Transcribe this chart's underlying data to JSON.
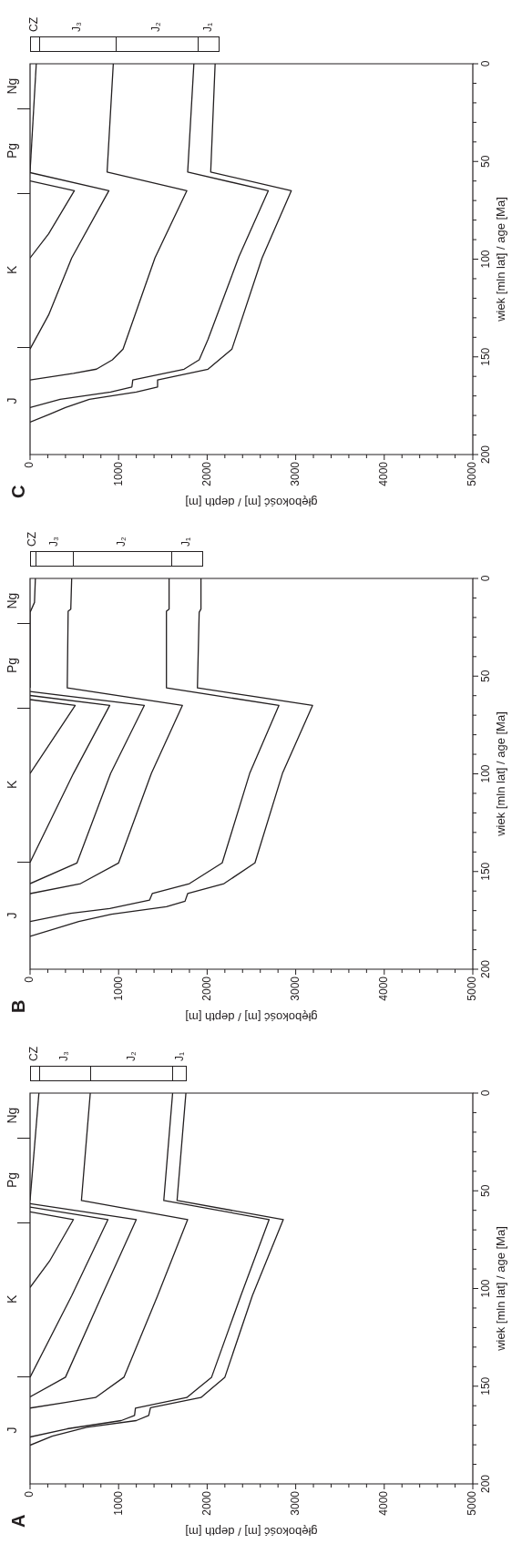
{
  "chart_data": [
    {
      "type": "line",
      "title": "C",
      "xlabel": "głębokość [m] / depth [m]",
      "ylabel": "wiek [mln lat] / age [Ma]",
      "marker": "none",
      "line_style": "solid",
      "legend": false,
      "xlim": [
        0,
        5000
      ],
      "ylim": [
        200,
        0
      ],
      "xticks": [
        0,
        {
          "value": 200,
          "label": null
        },
        {
          "value": 400,
          "label": null
        },
        {
          "value": 600,
          "label": null
        },
        {
          "value": 800,
          "label": null
        },
        1000,
        {
          "value": 1200,
          "label": null
        },
        {
          "value": 1400,
          "label": null
        },
        {
          "value": 1600,
          "label": null
        },
        {
          "value": 1800,
          "label": null
        },
        2000,
        {
          "value": 2200,
          "label": null
        },
        {
          "value": 2400,
          "label": null
        },
        {
          "value": 2600,
          "label": null
        },
        {
          "value": 2800,
          "label": null
        },
        3000,
        {
          "value": 3200,
          "label": null
        },
        {
          "value": 3400,
          "label": null
        },
        {
          "value": 3600,
          "label": null
        },
        {
          "value": 3800,
          "label": null
        },
        4000,
        {
          "value": 4200,
          "label": null
        },
        {
          "value": 4400,
          "label": null
        },
        {
          "value": 4600,
          "label": null
        },
        {
          "value": 4800,
          "label": null
        },
        5000
      ],
      "yticks": [
        0,
        {
          "value": 10,
          "label": null
        },
        {
          "value": 20,
          "label": null
        },
        {
          "value": 30,
          "label": null
        },
        {
          "value": 40,
          "label": null
        },
        50,
        {
          "value": 60,
          "label": null
        },
        {
          "value": 70,
          "label": null
        },
        {
          "value": 80,
          "label": null
        },
        {
          "value": 90,
          "label": null
        },
        100,
        {
          "value": 110,
          "label": null
        },
        {
          "value": 120,
          "label": null
        },
        {
          "value": 130,
          "label": null
        },
        {
          "value": 140,
          "label": null
        },
        150,
        {
          "value": 160,
          "label": null
        },
        {
          "value": 170,
          "label": null
        },
        {
          "value": 180,
          "label": null
        },
        {
          "value": 190,
          "label": null
        },
        200
      ],
      "series": [
        {
          "color": "#231f20",
          "x": [
            0,
            230,
            400,
            670,
            1200,
            1440,
            1440,
            2010,
            2280,
            2620,
            2950,
            2040,
            2090
          ],
          "values": [
            183.4,
            179.2,
            175.9,
            171.7,
            168,
            165.4,
            161.8,
            156.3,
            146,
            99.4,
            65,
            55.4,
            0
          ]
        },
        {
          "color": "#231f20",
          "x": [
            0,
            340,
            910,
            1150,
            1160,
            1740,
            1910,
            2010,
            2360,
            2690,
            1780,
            1850
          ],
          "values": [
            175.9,
            171.7,
            168,
            165.4,
            161.8,
            156.3,
            151.5,
            141,
            98.6,
            65,
            55.4,
            0
          ]
        },
        {
          "color": "#231f20",
          "x": [
            0,
            490,
            750,
            930,
            1050,
            1410,
            1770,
            870,
            940
          ],
          "values": [
            161.8,
            158.4,
            156.3,
            151.5,
            146,
            99.4,
            65,
            55.4,
            0
          ]
        },
        {
          "color": "#231f20",
          "x": [
            0,
            210,
            470,
            890,
            0
          ],
          "values": [
            146,
            128.5,
            99.4,
            65,
            55.7
          ]
        },
        {
          "color": "#231f20",
          "x": [
            0,
            210,
            500,
            0
          ],
          "values": [
            99.4,
            87,
            65,
            60
          ]
        },
        {
          "color": "#231f20",
          "x": [
            0,
            70
          ],
          "values": [
            55.4,
            0
          ]
        }
      ],
      "annotations": [
        "J",
        "K",
        "Pg",
        "Ng",
        "CZ",
        "J₃",
        "J₂",
        "J₁"
      ]
    },
    {
      "type": "line",
      "title": "B",
      "xlabel": "głębokość [m] / depth [m]",
      "ylabel": "wiek [mln lat] / age [Ma]",
      "marker": "none",
      "line_style": "solid",
      "legend": false,
      "xlim": [
        0,
        5000
      ],
      "ylim": [
        200,
        0
      ],
      "xticks": [
        0,
        {
          "value": 200,
          "label": null
        },
        {
          "value": 400,
          "label": null
        },
        {
          "value": 600,
          "label": null
        },
        {
          "value": 800,
          "label": null
        },
        1000,
        {
          "value": 1200,
          "label": null
        },
        {
          "value": 1400,
          "label": null
        },
        {
          "value": 1600,
          "label": null
        },
        {
          "value": 1800,
          "label": null
        },
        2000,
        {
          "value": 2200,
          "label": null
        },
        {
          "value": 2400,
          "label": null
        },
        {
          "value": 2600,
          "label": null
        },
        {
          "value": 2800,
          "label": null
        },
        3000,
        {
          "value": 3200,
          "label": null
        },
        {
          "value": 3400,
          "label": null
        },
        {
          "value": 3600,
          "label": null
        },
        {
          "value": 3800,
          "label": null
        },
        4000,
        {
          "value": 4200,
          "label": null
        },
        {
          "value": 4400,
          "label": null
        },
        {
          "value": 4600,
          "label": null
        },
        {
          "value": 4800,
          "label": null
        },
        5000
      ],
      "yticks": [
        0,
        {
          "value": 10,
          "label": null
        },
        {
          "value": 20,
          "label": null
        },
        {
          "value": 30,
          "label": null
        },
        {
          "value": 40,
          "label": null
        },
        50,
        {
          "value": 60,
          "label": null
        },
        {
          "value": 70,
          "label": null
        },
        {
          "value": 80,
          "label": null
        },
        {
          "value": 90,
          "label": null
        },
        100,
        {
          "value": 110,
          "label": null
        },
        {
          "value": 120,
          "label": null
        },
        {
          "value": 130,
          "label": null
        },
        {
          "value": 140,
          "label": null
        },
        150,
        {
          "value": 160,
          "label": null
        },
        {
          "value": 170,
          "label": null
        },
        {
          "value": 180,
          "label": null
        },
        {
          "value": 190,
          "label": null
        },
        200
      ],
      "series": [
        {
          "color": "#231f20",
          "x": [
            0,
            550,
            920,
            1540,
            1750,
            1780,
            2190,
            2540,
            2850,
            3190,
            1890,
            1910,
            1930,
            1930
          ],
          "values": [
            183.2,
            175.6,
            171.9,
            168,
            165.2,
            161.3,
            156.2,
            145.6,
            99.8,
            65,
            56,
            17.3,
            15.7,
            0
          ]
        },
        {
          "color": "#231f20",
          "x": [
            0,
            460,
            900,
            1350,
            1380,
            1800,
            2170,
            2480,
            2810,
            1540,
            1540,
            1570,
            1570
          ],
          "values": [
            175.6,
            171.4,
            168.9,
            164.6,
            161.3,
            156.2,
            145.6,
            99.8,
            65,
            56,
            16.8,
            15.7,
            0
          ]
        },
        {
          "color": "#231f20",
          "x": [
            0,
            570,
            1000,
            1370,
            1720,
            420,
            430,
            460,
            470
          ],
          "values": [
            161.3,
            156.2,
            145.6,
            99.8,
            65,
            56,
            16.8,
            15.7,
            0
          ]
        },
        {
          "color": "#231f20",
          "x": [
            0,
            530,
            910,
            1290,
            0
          ],
          "values": [
            156.2,
            145.6,
            99.8,
            65,
            57.9
          ]
        },
        {
          "color": "#231f20",
          "x": [
            0,
            490,
            900,
            0
          ],
          "values": [
            145.3,
            99.8,
            65,
            59.9
          ]
        },
        {
          "color": "#231f20",
          "x": [
            0,
            510,
            0
          ],
          "values": [
            99.8,
            65,
            62
          ]
        },
        {
          "color": "#231f20",
          "x": [
            0,
            0,
            50,
            60
          ],
          "values": [
            56,
            17.3,
            12.3,
            0
          ]
        }
      ],
      "annotations": [
        "J",
        "K",
        "Pg",
        "Ng",
        "CZ",
        "J₃",
        "J₂",
        "J₁"
      ]
    },
    {
      "type": "line",
      "title": "A",
      "xlabel": "głębokość [m] / depth [m]",
      "ylabel": "wiek [mln lat] / age [Ma]",
      "marker": "none",
      "line_style": "solid",
      "legend": false,
      "xlim": [
        0,
        5000
      ],
      "ylim": [
        200,
        0
      ],
      "xticks": [
        0,
        {
          "value": 200,
          "label": null
        },
        {
          "value": 400,
          "label": null
        },
        {
          "value": 600,
          "label": null
        },
        {
          "value": 800,
          "label": null
        },
        1000,
        {
          "value": 1200,
          "label": null
        },
        {
          "value": 1400,
          "label": null
        },
        {
          "value": 1600,
          "label": null
        },
        {
          "value": 1800,
          "label": null
        },
        2000,
        {
          "value": 2200,
          "label": null
        },
        {
          "value": 2400,
          "label": null
        },
        {
          "value": 2600,
          "label": null
        },
        {
          "value": 2800,
          "label": null
        },
        3000,
        {
          "value": 3200,
          "label": null
        },
        {
          "value": 3400,
          "label": null
        },
        {
          "value": 3600,
          "label": null
        },
        {
          "value": 3800,
          "label": null
        },
        4000,
        {
          "value": 4200,
          "label": null
        },
        {
          "value": 4400,
          "label": null
        },
        {
          "value": 4600,
          "label": null
        },
        {
          "value": 4800,
          "label": null
        },
        5000
      ],
      "yticks": [
        0,
        {
          "value": 10,
          "label": null
        },
        {
          "value": 20,
          "label": null
        },
        {
          "value": 30,
          "label": null
        },
        {
          "value": 40,
          "label": null
        },
        50,
        {
          "value": 60,
          "label": null
        },
        {
          "value": 70,
          "label": null
        },
        {
          "value": 80,
          "label": null
        },
        {
          "value": 90,
          "label": null
        },
        100,
        {
          "value": 110,
          "label": null
        },
        {
          "value": 120,
          "label": null
        },
        {
          "value": 130,
          "label": null
        },
        {
          "value": 140,
          "label": null
        },
        150,
        {
          "value": 160,
          "label": null
        },
        {
          "value": 170,
          "label": null
        },
        {
          "value": 180,
          "label": null
        },
        {
          "value": 190,
          "label": null
        },
        200
      ],
      "series": [
        {
          "color": "#231f20",
          "x": [
            0,
            250,
            640,
            1200,
            1340,
            1360,
            1930,
            2200,
            2510,
            2860,
            1660,
            1760
          ],
          "values": [
            180.2,
            175.6,
            171,
            167.6,
            165,
            161,
            155.8,
            145.4,
            103.7,
            64.7,
            55,
            0
          ]
        },
        {
          "color": "#231f20",
          "x": [
            0,
            420,
            1030,
            1180,
            1190,
            1770,
            2050,
            2380,
            2700,
            1510,
            1610
          ],
          "values": [
            176,
            171.8,
            167.6,
            165,
            161.2,
            155.8,
            145.4,
            103.7,
            64.7,
            55,
            0
          ]
        },
        {
          "color": "#231f20",
          "x": [
            0,
            400,
            740,
            1060,
            1440,
            1780,
            580,
            680
          ],
          "values": [
            161.2,
            158.3,
            155.8,
            145.4,
            103.7,
            64.7,
            55,
            0
          ]
        },
        {
          "color": "#231f20",
          "x": [
            0,
            400,
            810,
            1200,
            0
          ],
          "values": [
            155.5,
            145.4,
            103.7,
            64.7,
            56.6
          ]
        },
        {
          "color": "#231f20",
          "x": [
            0,
            470,
            880,
            0
          ],
          "values": [
            145.4,
            103.7,
            64.7,
            58.3
          ]
        },
        {
          "color": "#231f20",
          "x": [
            0,
            220,
            490,
            0
          ],
          "values": [
            99.5,
            86,
            64.7,
            60.8
          ]
        },
        {
          "color": "#231f20",
          "x": [
            0,
            100
          ],
          "values": [
            55,
            0
          ]
        }
      ],
      "annotations": [
        "J",
        "K",
        "Pg",
        "Ng",
        "CZ",
        "J₃",
        "J₂",
        "J₁"
      ]
    }
  ]
}
